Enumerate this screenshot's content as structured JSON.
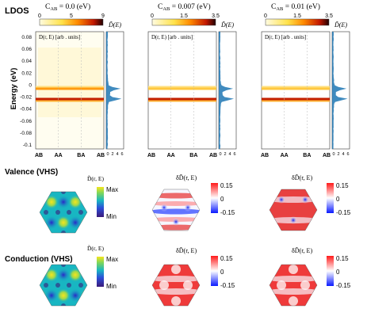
{
  "row_labels": {
    "ldos": "LDOS",
    "valence": "Valence (VHS)",
    "conduction": "Conduction (VHS)"
  },
  "energy_axis": {
    "label": "Energy (eV)",
    "ticks": [
      "0.08",
      "0.06",
      "0.04",
      "0.02",
      "0",
      "-0.02",
      "-0.04",
      "-0.06",
      "-0.08",
      "-0.1"
    ]
  },
  "x_ticks": [
    "AB",
    "AA",
    "BA",
    "AB"
  ],
  "dos_ticks": [
    "0",
    "2",
    "4",
    "6"
  ],
  "dos_title": "D̃(E)",
  "map_label": "D(r, E) [arb . units]",
  "panels": [
    {
      "ca_prefix": "C",
      "ca_sub": "AB",
      "ca_value": "=  0.0 (eV)",
      "cb_ticks": [
        "0",
        "5",
        "9"
      ]
    },
    {
      "ca_prefix": "C",
      "ca_sub": "AB",
      "ca_value": "=  0.007 (eV)",
      "cb_ticks": [
        "0",
        "1.5",
        "3.5"
      ]
    },
    {
      "ca_prefix": "C",
      "ca_sub": "AB",
      "ca_value": "=  0.01 (eV)",
      "cb_ticks": [
        "0",
        "1.5",
        "3.5"
      ]
    }
  ],
  "vhs_cb": {
    "abs_title": "D̃(r, E)",
    "abs_ticks": [
      "Max",
      "Min"
    ],
    "diff_title": "δD̃(r, E)",
    "diff_ticks": [
      "0.15",
      "0",
      "-0.15"
    ]
  },
  "colors": {
    "hot_band": "#b32b00",
    "dos_line": "#1f77b4",
    "viridis_low": "#3b1a7a",
    "viridis_high": "#f5e51e",
    "bwr_neg": "#0a1aff",
    "bwr_pos": "#ff1a1a"
  },
  "icons": {
    "hexagon": "hexagon-map"
  }
}
